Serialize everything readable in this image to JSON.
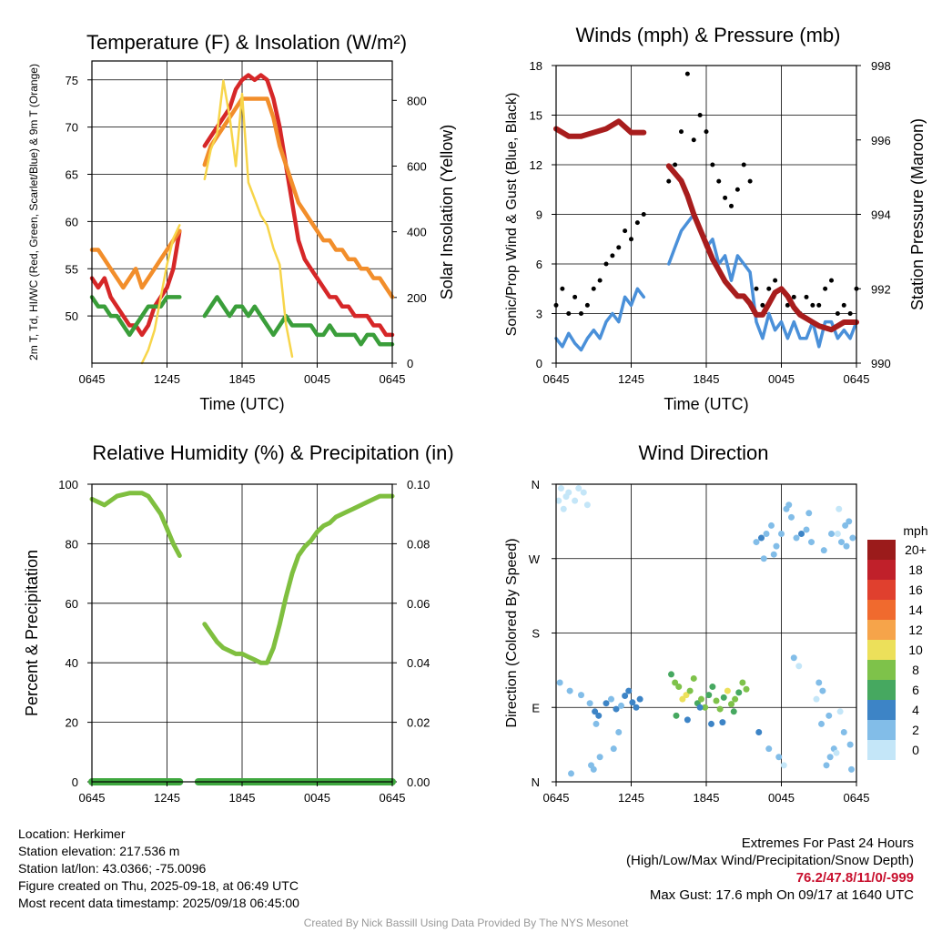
{
  "chart_data": [
    {
      "type": "line",
      "title": "Temperature (F) & Insolation (W/m²)",
      "xlabel": "Time (UTC)",
      "ylabel": "2m T, Td, HI/WC (Red, Green, Scarlet/Blue) & 9m T (Orange)",
      "y2label": "Solar Insolation (Yellow)",
      "x_ticks": [
        "0645",
        "1245",
        "1845",
        "0045",
        "0645"
      ],
      "ylim": [
        45,
        77
      ],
      "y_ticks": [
        50,
        55,
        60,
        65,
        70,
        75
      ],
      "y2lim": [
        0,
        920
      ],
      "y2_ticks": [
        0,
        200,
        400,
        600,
        800
      ],
      "grid": true,
      "series": [
        {
          "color": "#d62728",
          "axis": "y",
          "x": [
            0,
            0.5,
            1,
            1.5,
            2,
            2.5,
            3,
            3.5,
            4,
            4.5,
            5,
            5.5,
            6,
            6.5,
            7,
            9,
            9.5,
            10,
            10.5,
            11,
            11.5,
            12,
            12.5,
            13,
            13.5,
            14,
            14.5,
            15,
            15.5,
            16,
            16.5,
            17,
            17.5,
            18,
            18.5,
            19,
            19.5,
            20,
            20.5,
            21,
            21.5,
            22,
            22.5,
            23,
            23.5,
            24
          ],
          "y": [
            54,
            53,
            54,
            52,
            51,
            50,
            49,
            49,
            48,
            49,
            51,
            52,
            53,
            55,
            59,
            68,
            69,
            70,
            71,
            72,
            74,
            75,
            75.5,
            75,
            75.5,
            75,
            73,
            70,
            66,
            62,
            58,
            56,
            55,
            54,
            53,
            52,
            52,
            51,
            51,
            50,
            50,
            50,
            49,
            49,
            48,
            48
          ]
        },
        {
          "color": "#f28e2b",
          "axis": "y",
          "x": [
            0,
            0.5,
            1,
            1.5,
            2,
            2.5,
            3,
            3.5,
            4,
            4.5,
            5,
            5.5,
            6,
            6.5,
            7,
            9,
            9.5,
            10,
            10.5,
            11,
            11.5,
            12,
            12.5,
            13,
            13.5,
            14,
            14.5,
            15,
            15.5,
            16,
            16.5,
            17,
            17.5,
            18,
            18.5,
            19,
            19.5,
            20,
            20.5,
            21,
            21.5,
            22,
            22.5,
            23,
            23.5,
            24
          ],
          "y": [
            57,
            57,
            56,
            55,
            54,
            53,
            54,
            55,
            53,
            54,
            55,
            56,
            57,
            58,
            59,
            66,
            68,
            69,
            70,
            71,
            72,
            73,
            73,
            73,
            73,
            73,
            71,
            68,
            66,
            64,
            62,
            61,
            60,
            59,
            58,
            58,
            57,
            57,
            56,
            56,
            55,
            55,
            54,
            54,
            53,
            52
          ]
        },
        {
          "color": "#3a9e3a",
          "axis": "y",
          "x": [
            0,
            0.5,
            1,
            1.5,
            2,
            2.5,
            3,
            3.5,
            4,
            4.5,
            5,
            5.5,
            6,
            6.5,
            7,
            9,
            9.5,
            10,
            10.5,
            11,
            11.5,
            12,
            12.5,
            13,
            13.5,
            14,
            14.5,
            15,
            15.5,
            16,
            16.5,
            17,
            17.5,
            18,
            18.5,
            19,
            19.5,
            20,
            20.5,
            21,
            21.5,
            22,
            22.5,
            23,
            23.5,
            24
          ],
          "y": [
            52,
            51,
            51,
            50,
            50,
            49,
            48,
            49,
            50,
            51,
            51,
            51,
            52,
            52,
            52,
            50,
            51,
            52,
            51,
            50,
            51,
            51,
            50,
            51,
            50,
            49,
            48,
            49,
            50,
            49,
            49,
            49,
            49,
            48,
            48,
            49,
            48,
            48,
            48,
            48,
            47,
            48,
            48,
            47,
            47,
            47
          ]
        },
        {
          "color": "#f7d54a",
          "axis": "y2",
          "x": [
            0,
            4,
            4.5,
            5,
            5.5,
            6,
            6.5,
            7,
            9,
            9.5,
            10,
            10.5,
            11,
            11.5,
            12,
            12.5,
            13,
            13.5,
            14,
            14.5,
            15,
            15.5,
            16,
            24
          ],
          "y": [
            0,
            0,
            40,
            100,
            200,
            300,
            380,
            420,
            560,
            650,
            700,
            860,
            750,
            600,
            820,
            550,
            500,
            450,
            420,
            350,
            300,
            120,
            20,
            0
          ]
        }
      ]
    },
    {
      "type": "line",
      "title": "Winds (mph) & Pressure (mb)",
      "xlabel": "Time (UTC)",
      "ylabel": "Sonic/Prop Wind & Gust (Blue, Black)",
      "y2label": "Station Pressure (Maroon)",
      "x_ticks": [
        "0645",
        "1245",
        "1845",
        "0045",
        "0645"
      ],
      "ylim": [
        0,
        18
      ],
      "y_ticks": [
        0,
        3,
        6,
        9,
        12,
        15,
        18
      ],
      "y2lim": [
        990,
        998
      ],
      "y2_ticks": [
        990,
        992,
        994,
        996,
        998
      ],
      "grid": true,
      "series": [
        {
          "color": "#4a90d9",
          "axis": "y",
          "x": [
            0,
            0.5,
            1,
            1.5,
            2,
            2.5,
            3,
            3.5,
            4,
            4.5,
            5,
            5.5,
            6,
            6.5,
            7,
            9,
            9.5,
            10,
            10.5,
            11,
            11.5,
            12,
            12.5,
            13,
            13.5,
            14,
            14.5,
            15,
            15.5,
            16,
            16.5,
            17,
            17.5,
            18,
            18.5,
            19,
            19.5,
            20,
            20.5,
            21,
            21.5,
            22,
            22.5,
            23,
            23.5,
            24
          ],
          "y": [
            1.5,
            1,
            1.8,
            1.2,
            0.8,
            1.5,
            2,
            1.5,
            2.5,
            3,
            2.5,
            4,
            3.5,
            4.5,
            4,
            6,
            7,
            8,
            8.5,
            9,
            8,
            7,
            7.5,
            6,
            6.5,
            5,
            6.5,
            6,
            5.5,
            2.5,
            1.5,
            3,
            2,
            2.5,
            1.5,
            2.5,
            1.5,
            1.5,
            2.5,
            1,
            2.5,
            2.5,
            1.5,
            2,
            1.5,
            2.5
          ]
        },
        {
          "color": "#000000",
          "axis": "y",
          "x": [
            0,
            0.5,
            1,
            1.5,
            2,
            2.5,
            3,
            3.5,
            4,
            4.5,
            5,
            5.5,
            6,
            6.5,
            7,
            9,
            9.5,
            10,
            10.5,
            11,
            11.5,
            12,
            12.5,
            13,
            13.5,
            14,
            14.5,
            15,
            15.5,
            16,
            16.5,
            17,
            17.5,
            18,
            18.5,
            19,
            19.5,
            20,
            20.5,
            21,
            21.5,
            22,
            22.5,
            23,
            23.5,
            24
          ],
          "y": [
            3.5,
            4.5,
            3,
            4,
            3,
            3.5,
            4.5,
            5,
            6,
            6.5,
            7,
            8,
            7.5,
            8.5,
            9,
            11,
            12,
            14,
            17.5,
            13.5,
            15,
            14,
            12,
            11,
            10,
            9.5,
            10.5,
            12,
            11,
            4.5,
            3.5,
            4.5,
            5,
            4.5,
            3.5,
            4,
            3,
            4,
            3.5,
            3.5,
            4.5,
            5,
            3,
            3.5,
            3,
            4.5
          ]
        },
        {
          "color": "#a81d1d",
          "axis": "y2",
          "x": [
            0,
            1,
            2,
            3,
            4,
            5,
            6,
            7,
            9,
            9.5,
            10,
            10.5,
            11,
            11.5,
            12,
            12.5,
            13,
            13.5,
            14,
            14.5,
            15,
            15.5,
            16,
            16.5,
            17,
            17.5,
            18,
            18.5,
            19,
            19.5,
            20,
            21,
            22,
            23,
            24
          ],
          "y": [
            996.3,
            996.1,
            996.1,
            996.2,
            996.3,
            996.5,
            996.2,
            996.2,
            995.3,
            995.1,
            994.9,
            994.5,
            994.0,
            993.6,
            993.2,
            992.8,
            992.5,
            992.2,
            992.0,
            991.8,
            991.8,
            991.6,
            991.3,
            991.3,
            991.6,
            991.9,
            992.0,
            991.8,
            991.5,
            991.3,
            991.2,
            991.0,
            990.9,
            991.1,
            991.1
          ]
        }
      ]
    },
    {
      "type": "line",
      "title": "Relative Humidity (%) & Precipitation (in)",
      "xlabel": "",
      "ylabel": "Percent & Precipitation",
      "x_ticks": [
        "0645",
        "1245",
        "1845",
        "0045",
        "0645"
      ],
      "ylim": [
        0,
        100
      ],
      "y_ticks": [
        0,
        20,
        40,
        60,
        80,
        100
      ],
      "y2lim": [
        0,
        0.1
      ],
      "y2_ticks": [
        "0.00",
        "0.02",
        "0.04",
        "0.06",
        "0.08",
        "0.10"
      ],
      "grid": true,
      "series": [
        {
          "color": "#7fbf3f",
          "axis": "y",
          "x": [
            0,
            1,
            2,
            3,
            4,
            4.5,
            5,
            5.5,
            6,
            6.5,
            7
          ],
          "y": [
            95,
            93,
            96,
            97,
            97,
            96,
            93,
            90,
            85,
            80,
            76
          ]
        },
        {
          "color": "#7fbf3f",
          "axis": "y",
          "x": [
            9,
            9.5,
            10,
            10.5,
            11,
            11.5,
            12,
            12.5,
            13,
            13.5,
            14,
            14.5,
            15,
            15.5,
            16,
            16.5,
            17,
            17.5,
            18,
            18.5,
            19,
            19.5,
            20,
            21,
            22,
            23,
            24
          ],
          "y": [
            53,
            50,
            47,
            45,
            44,
            43,
            43,
            42,
            41,
            40,
            40,
            45,
            53,
            62,
            70,
            76,
            79,
            81,
            84,
            86,
            87,
            89,
            90,
            92,
            94,
            96,
            96
          ]
        },
        {
          "color": "#3fa83f",
          "axis": "y2",
          "x": [
            0,
            7
          ],
          "y": [
            0,
            0
          ]
        },
        {
          "color": "#3fa83f",
          "axis": "y2",
          "x": [
            8.5,
            24
          ],
          "y": [
            0,
            0
          ]
        }
      ]
    },
    {
      "type": "scatter",
      "title": "Wind Direction",
      "xlabel": "",
      "ylabel": "Direction (Colored By Speed)",
      "x_ticks": [
        "0645",
        "1245",
        "1845",
        "0045",
        "0645"
      ],
      "y_ticks": [
        "N",
        "E",
        "S",
        "W",
        "N"
      ],
      "ylim": [
        0,
        360
      ],
      "grid": true,
      "colorbar": {
        "title": "mph",
        "labels": [
          "20+",
          "18",
          "16",
          "14",
          "12",
          "10",
          "8",
          "6",
          "4",
          "2",
          "0"
        ],
        "colors": [
          "#9b1b1b",
          "#c0202a",
          "#e0402e",
          "#f06a2e",
          "#f6a44a",
          "#ece05a",
          "#7ec24a",
          "#46a860",
          "#3d84c6",
          "#82bde8",
          "#c4e6f8"
        ]
      },
      "x": [
        0.2,
        0.4,
        0.6,
        0.8,
        1.0,
        1.2,
        1.5,
        1.8,
        2.2,
        2.5,
        2.8,
        3.0,
        3.2,
        3.5,
        0.3,
        1.1,
        2.0,
        2.7,
        3.4,
        3.1,
        4.0,
        4.4,
        4.8,
        5.2,
        5.5,
        5.8,
        6.1,
        6.4,
        6.7,
        5.0,
        4.6,
        9.2,
        9.5,
        9.8,
        10.1,
        10.4,
        10.7,
        11.0,
        11.3,
        11.6,
        11.9,
        12.2,
        12.5,
        12.8,
        13.1,
        13.4,
        13.7,
        14.0,
        14.3,
        14.6,
        14.9,
        15.2,
        9.6,
        10.5,
        11.5,
        12.4,
        13.3,
        14.2,
        16.0,
        16.4,
        16.8,
        17.2,
        17.6,
        18.0,
        18.4,
        18.8,
        19.2,
        19.6,
        20.0,
        20.4,
        16.6,
        17.4,
        18.6,
        20.2,
        16.2,
        17.0,
        17.8,
        18.2,
        19.0,
        19.4,
        21.0,
        21.3,
        21.6,
        21.9,
        22.2,
        22.5,
        22.8,
        23.1,
        23.4,
        23.7,
        21.4,
        22.0,
        22.6,
        23.2,
        21.2,
        22.4,
        23.0,
        23.6,
        21.8,
        20.8,
        22.7,
        23.5
      ],
      "y": [
        340,
        355,
        330,
        345,
        350,
        10,
        340,
        355,
        350,
        335,
        20,
        15,
        70,
        30,
        120,
        110,
        105,
        95,
        80,
        85,
        95,
        100,
        88,
        92,
        104,
        110,
        96,
        90,
        100,
        60,
        40,
        130,
        120,
        115,
        100,
        105,
        110,
        125,
        95,
        100,
        90,
        105,
        115,
        98,
        88,
        102,
        110,
        94,
        100,
        108,
        120,
        112,
        80,
        75,
        90,
        70,
        72,
        85,
        290,
        295,
        300,
        310,
        285,
        300,
        330,
        320,
        295,
        300,
        305,
        290,
        270,
        275,
        335,
        325,
        60,
        40,
        30,
        20,
        150,
        140,
        120,
        110,
        20,
        30,
        40,
        300,
        290,
        310,
        315,
        295,
        280,
        300,
        330,
        285,
        70,
        35,
        60,
        15,
        80,
        100,
        85,
        45
      ],
      "speeds": [
        1,
        1,
        1,
        1,
        1,
        2,
        1,
        1,
        1,
        1,
        2,
        3,
        2,
        2,
        3,
        2,
        3,
        3,
        4,
        4,
        4,
        3,
        4,
        3,
        4,
        4,
        4,
        5,
        4,
        2,
        2,
        7,
        8,
        9,
        10,
        11,
        9,
        8,
        7,
        8,
        9,
        7,
        6,
        9,
        8,
        7,
        10,
        9,
        8,
        7,
        8,
        9,
        6,
        5,
        4,
        5,
        4,
        6,
        3,
        4,
        3,
        3,
        2,
        3,
        2,
        2,
        3,
        4,
        3,
        2,
        3,
        2,
        2,
        2,
        5,
        3,
        2,
        1,
        2,
        1,
        3,
        2,
        2,
        2,
        3,
        1,
        2,
        2,
        3,
        2,
        3,
        2,
        1,
        2,
        2,
        1,
        2,
        3,
        2,
        1,
        1,
        3
      ]
    }
  ],
  "info": {
    "location": "Location: Herkimer",
    "elevation": "Station elevation: 217.536 m",
    "latlon": "Station lat/lon: 43.0366; -75.0096",
    "created": "Figure created on Thu, 2025-09-18, at 06:49 UTC",
    "recent": "Most recent data timestamp: 2025/09/18 06:45:00"
  },
  "extremes": {
    "title": "Extremes For Past 24 Hours",
    "subtitle": "(High/Low/Max Wind/Precipitation/Snow Depth)",
    "values": "76.2/47.8/11/0/-999",
    "gust": "Max Gust: 17.6 mph On 09/17 at 1640 UTC",
    "highlight_color": "#c8102e"
  },
  "credit": "Created By Nick Bassill Using Data Provided By The NYS Mesonet"
}
